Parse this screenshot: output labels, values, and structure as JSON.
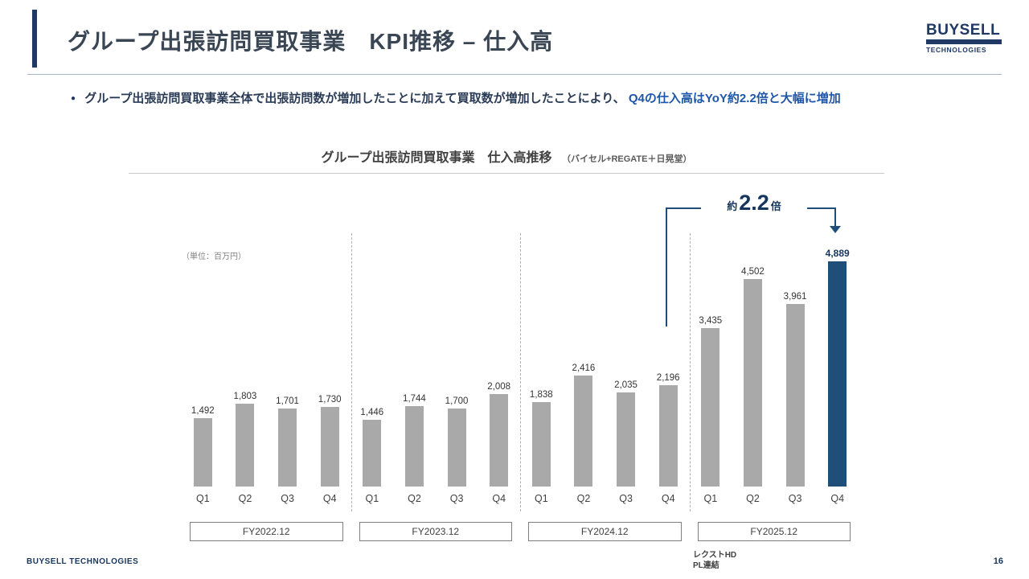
{
  "header": {
    "title": "グループ出張訪問買取事業　KPI推移 – 仕入高",
    "logo": {
      "line1": "BUYSELL",
      "line2": "TECHNOLOGIES"
    }
  },
  "summary": {
    "bullet": "●",
    "normal": "グループ出張訪問買取事業全体で出張訪問数が増加したことに加えて買取数が増加したことにより、",
    "highlight": "Q4の仕入高はYoY約2.2倍と大幅に増加"
  },
  "chart_data": {
    "type": "bar",
    "title": "グループ出張訪問買取事業　仕入高推移",
    "subtitle": "（バイセル+REGATE＋日晃堂）",
    "unit_label": "（単位：百万円）",
    "ylim": [
      0,
      5500
    ],
    "grid": false,
    "bar_color": "#a9a9a9",
    "highlight_color": "#1f4e79",
    "categories": [
      "Q1",
      "Q2",
      "Q3",
      "Q4"
    ],
    "groups": [
      {
        "label": "FY2022.12",
        "values": [
          1492,
          1803,
          1701,
          1730
        ]
      },
      {
        "label": "FY2023.12",
        "values": [
          1446,
          1744,
          1700,
          2008
        ]
      },
      {
        "label": "FY2024.12",
        "values": [
          1838,
          2416,
          2035,
          2196
        ]
      },
      {
        "label": "FY2025.12",
        "values": [
          3435,
          4502,
          3961,
          4889
        ]
      }
    ],
    "highlight": {
      "group_index": 3,
      "bar_index": 3
    },
    "annotation": {
      "prefix": "約",
      "value": "2.2",
      "suffix": "倍"
    },
    "footnote_line1": "レクストHD",
    "footnote_line2": "PL連結"
  },
  "footer": {
    "company": "BUYSELL TECHNOLOGIES",
    "page": "16"
  }
}
